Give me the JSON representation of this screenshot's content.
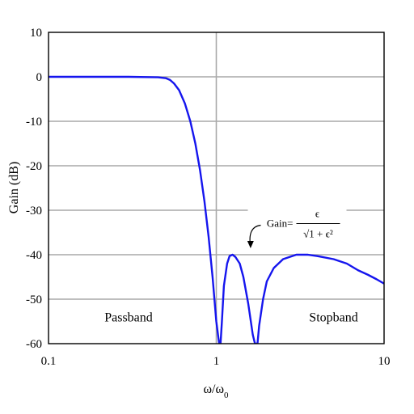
{
  "chart_data": {
    "type": "line",
    "title": "",
    "xlabel": "ω/ω0",
    "xlabel_main": "ω/ω",
    "xlabel_sub": "0",
    "ylabel": "Gain (dB)",
    "xscale": "log",
    "xlim": [
      0.1,
      10
    ],
    "ylim": [
      -60,
      10
    ],
    "grid": true,
    "xticks": [
      {
        "value": 0.1,
        "label": "0.1"
      },
      {
        "value": 1,
        "label": "1"
      },
      {
        "value": 10,
        "label": "10"
      }
    ],
    "yticks": [
      {
        "value": 10,
        "label": "10"
      },
      {
        "value": 0,
        "label": "0"
      },
      {
        "value": -10,
        "label": "-10"
      },
      {
        "value": -20,
        "label": "-20"
      },
      {
        "value": -30,
        "label": "-30"
      },
      {
        "value": -40,
        "label": "-40"
      },
      {
        "value": -50,
        "label": "-50"
      },
      {
        "value": -60,
        "label": "-60"
      }
    ],
    "regions": [
      {
        "label": "Passband",
        "x": 0.3,
        "y": -55
      },
      {
        "label": "Stopband",
        "x": 5.0,
        "y": -55
      }
    ],
    "annotation": {
      "text_prefix": "Gain=",
      "numerator": "ϵ",
      "denominator": "√1 + ϵ²",
      "x": 3.0,
      "y": -33,
      "points_to": {
        "x": 1.6,
        "y": -40
      }
    },
    "series": [
      {
        "name": "",
        "color": "#1515ee",
        "points": [
          [
            0.1,
            0
          ],
          [
            0.3,
            0
          ],
          [
            0.45,
            -0.1
          ],
          [
            0.5,
            -0.3
          ],
          [
            0.53,
            -0.7
          ],
          [
            0.56,
            -1.5
          ],
          [
            0.6,
            -3
          ],
          [
            0.65,
            -6
          ],
          [
            0.7,
            -10
          ],
          [
            0.75,
            -15
          ],
          [
            0.8,
            -21
          ],
          [
            0.85,
            -28
          ],
          [
            0.9,
            -36
          ],
          [
            0.95,
            -45
          ],
          [
            1.0,
            -55
          ],
          [
            1.04,
            -60
          ],
          [
            1.06,
            -60
          ],
          [
            1.08,
            -55
          ],
          [
            1.11,
            -47
          ],
          [
            1.16,
            -42
          ],
          [
            1.2,
            -40.3
          ],
          [
            1.25,
            -40
          ],
          [
            1.3,
            -40.5
          ],
          [
            1.38,
            -42
          ],
          [
            1.45,
            -45
          ],
          [
            1.55,
            -51
          ],
          [
            1.65,
            -58
          ],
          [
            1.7,
            -60
          ],
          [
            1.76,
            -60
          ],
          [
            1.8,
            -56
          ],
          [
            1.9,
            -50
          ],
          [
            2.0,
            -46
          ],
          [
            2.2,
            -43
          ],
          [
            2.5,
            -41
          ],
          [
            3.0,
            -40
          ],
          [
            3.5,
            -40
          ],
          [
            4.0,
            -40.3
          ],
          [
            5.0,
            -41
          ],
          [
            6.0,
            -42
          ],
          [
            7.0,
            -43.5
          ],
          [
            8.0,
            -44.5
          ],
          [
            9.0,
            -45.5
          ],
          [
            10.0,
            -46.5
          ]
        ]
      }
    ]
  }
}
